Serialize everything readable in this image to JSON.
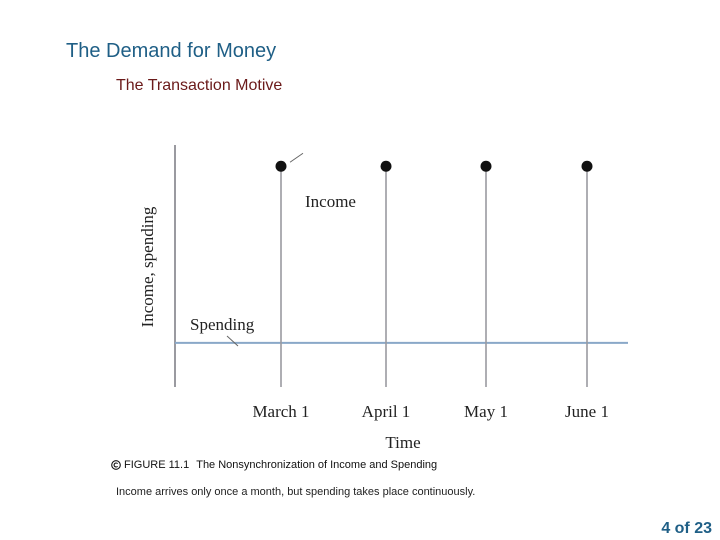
{
  "slide": {
    "title": "The Demand for Money",
    "subtitle": "The Transaction Motive"
  },
  "caption": {
    "icon": "copyright-icon",
    "figure_number": "FIGURE 11.1",
    "figure_title": "The Nonsynchronization of Income and Spending",
    "description": "Income arrives only once a month, but spending takes place continuously."
  },
  "page": {
    "label": "4 of 23"
  },
  "colors": {
    "title": "#1f5f86",
    "subtitle": "#6b1a1a",
    "axis": "#9a9aa0",
    "spending_line": "#8aa8c8",
    "points": "#111111"
  },
  "chart_data": {
    "type": "scatter",
    "xlabel": "Time",
    "ylabel": "Income, spending",
    "categories": [
      "March 1",
      "April 1",
      "May 1",
      "June 1"
    ],
    "series": [
      {
        "name": "Income",
        "type": "points",
        "values": [
          1,
          1,
          1,
          1
        ]
      },
      {
        "name": "Spending",
        "type": "horizontal-line",
        "level": 0.2
      }
    ],
    "ylim": [
      0,
      1.3
    ],
    "grid": false,
    "legend": "none"
  }
}
